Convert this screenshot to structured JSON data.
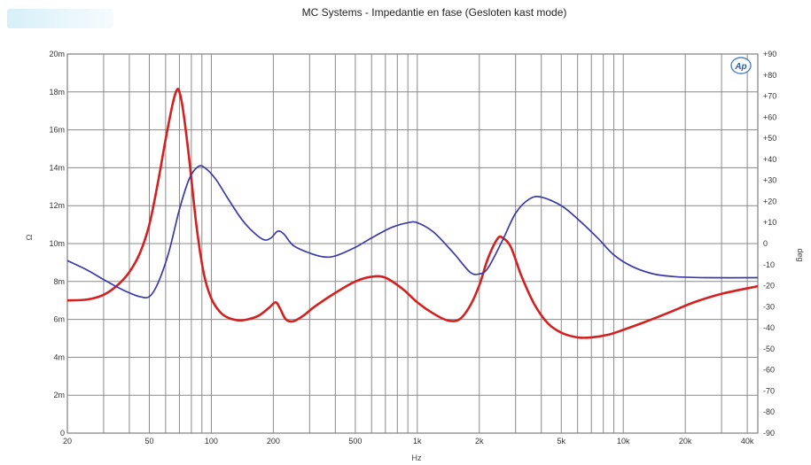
{
  "chart_data": {
    "type": "line",
    "title": "MC Systems - Impedantie en fase (Gesloten kast mode)",
    "xlabel": "Hz",
    "ylabel_left": "Ω",
    "ylabel_right": "deg",
    "x_scale": "log",
    "xlim": [
      20,
      45000
    ],
    "ylim_left": [
      0,
      20
    ],
    "ylim_right": [
      -90,
      90
    ],
    "grid": true,
    "x_ticks": [
      {
        "v": 20,
        "label": "20"
      },
      {
        "v": 50,
        "label": "50"
      },
      {
        "v": 100,
        "label": "100"
      },
      {
        "v": 200,
        "label": "200"
      },
      {
        "v": 500,
        "label": "500"
      },
      {
        "v": 1000,
        "label": "1k"
      },
      {
        "v": 2000,
        "label": "2k"
      },
      {
        "v": 5000,
        "label": "5k"
      },
      {
        "v": 10000,
        "label": "10k"
      },
      {
        "v": 20000,
        "label": "20k"
      },
      {
        "v": 40000,
        "label": "40k"
      }
    ],
    "y_left_ticks": [
      {
        "v": 0,
        "label": "0"
      },
      {
        "v": 2,
        "label": "2m"
      },
      {
        "v": 4,
        "label": "4m"
      },
      {
        "v": 6,
        "label": "6m"
      },
      {
        "v": 8,
        "label": "8m"
      },
      {
        "v": 10,
        "label": "10m"
      },
      {
        "v": 12,
        "label": "12m"
      },
      {
        "v": 14,
        "label": "14m"
      },
      {
        "v": 16,
        "label": "16m"
      },
      {
        "v": 18,
        "label": "18m"
      },
      {
        "v": 20,
        "label": "20m"
      }
    ],
    "y_right_ticks": [
      {
        "v": 90,
        "label": "+90"
      },
      {
        "v": 80,
        "label": "+80"
      },
      {
        "v": 70,
        "label": "+70"
      },
      {
        "v": 60,
        "label": "+60"
      },
      {
        "v": 50,
        "label": "+50"
      },
      {
        "v": 40,
        "label": "+40"
      },
      {
        "v": 30,
        "label": "+30"
      },
      {
        "v": 20,
        "label": "+20"
      },
      {
        "v": 10,
        "label": "+10"
      },
      {
        "v": 0,
        "label": "0"
      },
      {
        "v": -10,
        "label": "-10"
      },
      {
        "v": -20,
        "label": "-20"
      },
      {
        "v": -30,
        "label": "-30"
      },
      {
        "v": -40,
        "label": "-40"
      },
      {
        "v": -50,
        "label": "-50"
      },
      {
        "v": -60,
        "label": "-60"
      },
      {
        "v": -70,
        "label": "-70"
      },
      {
        "v": -80,
        "label": "-80"
      },
      {
        "v": -90,
        "label": "-90"
      }
    ],
    "series": [
      {
        "color": "#d42020",
        "axis": "left",
        "points": [
          [
            20,
            7.0
          ],
          [
            25,
            7.05
          ],
          [
            30,
            7.3
          ],
          [
            35,
            7.8
          ],
          [
            40,
            8.5
          ],
          [
            45,
            9.5
          ],
          [
            50,
            11.0
          ],
          [
            55,
            13.2
          ],
          [
            60,
            15.5
          ],
          [
            65,
            17.4
          ],
          [
            68,
            18.1
          ],
          [
            70,
            18.0
          ],
          [
            73,
            17.0
          ],
          [
            78,
            14.5
          ],
          [
            85,
            10.8
          ],
          [
            92,
            8.4
          ],
          [
            100,
            7.1
          ],
          [
            110,
            6.4
          ],
          [
            120,
            6.1
          ],
          [
            135,
            5.95
          ],
          [
            150,
            6.0
          ],
          [
            170,
            6.2
          ],
          [
            190,
            6.6
          ],
          [
            205,
            6.9
          ],
          [
            215,
            6.6
          ],
          [
            230,
            6.0
          ],
          [
            250,
            5.9
          ],
          [
            280,
            6.2
          ],
          [
            320,
            6.7
          ],
          [
            400,
            7.4
          ],
          [
            500,
            8.0
          ],
          [
            600,
            8.25
          ],
          [
            700,
            8.2
          ],
          [
            850,
            7.6
          ],
          [
            1000,
            6.9
          ],
          [
            1200,
            6.3
          ],
          [
            1400,
            5.95
          ],
          [
            1600,
            6.0
          ],
          [
            1800,
            6.7
          ],
          [
            2000,
            7.8
          ],
          [
            2200,
            9.2
          ],
          [
            2450,
            10.25
          ],
          [
            2600,
            10.3
          ],
          [
            2850,
            9.8
          ],
          [
            3200,
            8.3
          ],
          [
            3700,
            6.8
          ],
          [
            4300,
            5.8
          ],
          [
            5000,
            5.3
          ],
          [
            6000,
            5.05
          ],
          [
            7000,
            5.05
          ],
          [
            8500,
            5.2
          ],
          [
            10000,
            5.45
          ],
          [
            13000,
            5.9
          ],
          [
            17000,
            6.4
          ],
          [
            22000,
            6.9
          ],
          [
            30000,
            7.35
          ],
          [
            45000,
            7.75
          ]
        ]
      },
      {
        "color": "#3a3aa8",
        "axis": "left",
        "points": [
          [
            20,
            9.1
          ],
          [
            25,
            8.6
          ],
          [
            30,
            8.1
          ],
          [
            35,
            7.7
          ],
          [
            40,
            7.4
          ],
          [
            45,
            7.2
          ],
          [
            50,
            7.2
          ],
          [
            55,
            7.9
          ],
          [
            62,
            9.5
          ],
          [
            70,
            11.8
          ],
          [
            78,
            13.4
          ],
          [
            86,
            14.05
          ],
          [
            93,
            14.0
          ],
          [
            105,
            13.4
          ],
          [
            120,
            12.4
          ],
          [
            140,
            11.3
          ],
          [
            160,
            10.6
          ],
          [
            180,
            10.2
          ],
          [
            195,
            10.3
          ],
          [
            210,
            10.65
          ],
          [
            225,
            10.5
          ],
          [
            250,
            9.9
          ],
          [
            300,
            9.5
          ],
          [
            350,
            9.3
          ],
          [
            400,
            9.35
          ],
          [
            500,
            9.8
          ],
          [
            600,
            10.3
          ],
          [
            750,
            10.85
          ],
          [
            900,
            11.1
          ],
          [
            1000,
            11.1
          ],
          [
            1200,
            10.6
          ],
          [
            1500,
            9.5
          ],
          [
            1800,
            8.5
          ],
          [
            2000,
            8.4
          ],
          [
            2200,
            8.7
          ],
          [
            2600,
            10.2
          ],
          [
            3000,
            11.6
          ],
          [
            3500,
            12.35
          ],
          [
            4000,
            12.45
          ],
          [
            5000,
            12.0
          ],
          [
            6000,
            11.3
          ],
          [
            7500,
            10.3
          ],
          [
            9000,
            9.4
          ],
          [
            11000,
            8.8
          ],
          [
            14000,
            8.4
          ],
          [
            18000,
            8.25
          ],
          [
            25000,
            8.2
          ],
          [
            45000,
            8.2
          ]
        ]
      }
    ]
  }
}
